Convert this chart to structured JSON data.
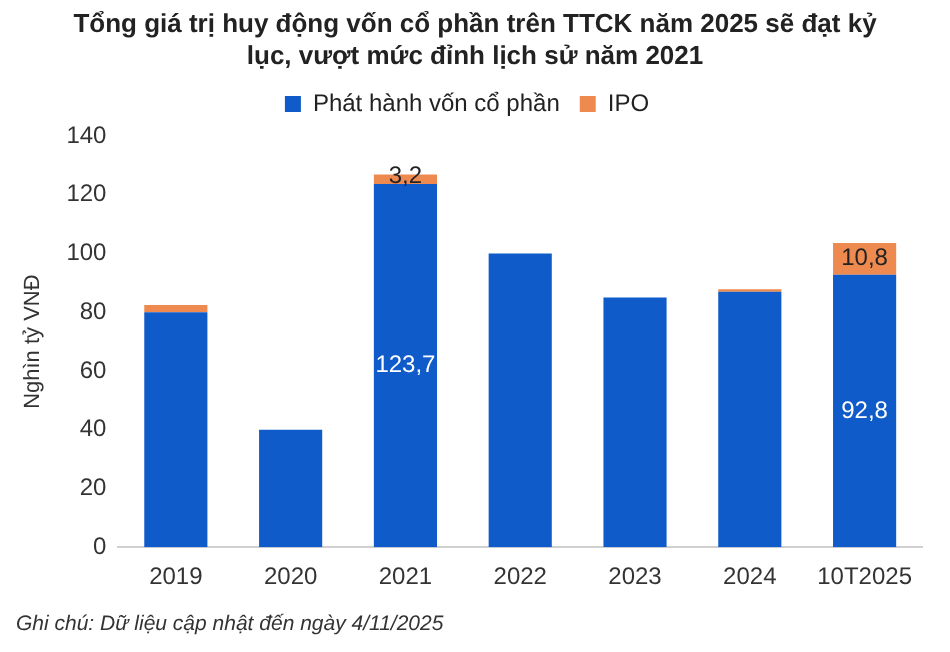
{
  "chart_data": {
    "type": "bar",
    "title": "Tổng giá trị huy động vốn cổ phần trên TTCK năm 2025 sẽ đạt kỷ lục, vượt mức đỉnh lịch sử năm 2021",
    "ylabel": "Nghìn tỷ VNĐ",
    "categories": [
      "2019",
      "2020",
      "2021",
      "2022",
      "2023",
      "2024",
      "10T2025"
    ],
    "stacked": true,
    "legend": "top",
    "grid": false,
    "ylim": [
      0,
      140
    ],
    "yticks": [
      0,
      20,
      40,
      60,
      80,
      100,
      120,
      140
    ],
    "series": [
      {
        "name": "Phát hành vốn cổ phần",
        "color": "#0f5bc9",
        "values": [
          80,
          40,
          123.7,
          100,
          85,
          87,
          92.8
        ],
        "value_labels": [
          null,
          null,
          "123,7",
          null,
          null,
          null,
          "92,8"
        ]
      },
      {
        "name": "IPO",
        "color": "#ee8a4f",
        "values": [
          2.5,
          0,
          3.2,
          0,
          0,
          0.8,
          10.8
        ],
        "value_labels": [
          null,
          null,
          "3,2",
          null,
          null,
          null,
          "10,8"
        ]
      }
    ],
    "annotations": [
      "Ghi chú: Dữ liệu cập nhật đến ngày 4/11/2025"
    ]
  }
}
